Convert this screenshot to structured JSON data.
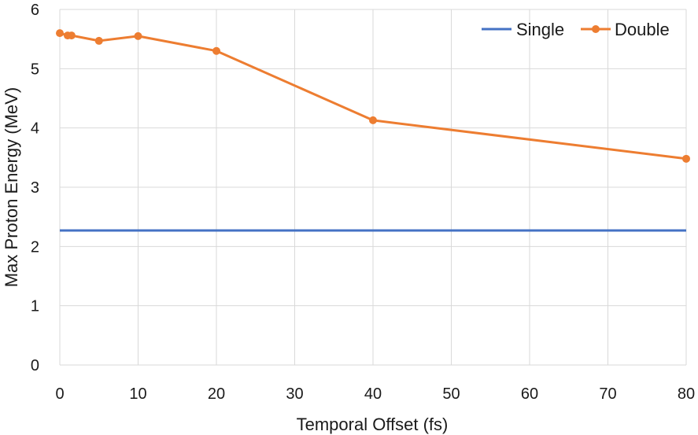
{
  "chart_data": {
    "type": "line",
    "title": "",
    "xlabel": "Temporal Offset (fs)",
    "ylabel": "Max Proton Energy (MeV)",
    "xlim": [
      0,
      80
    ],
    "ylim": [
      0,
      6
    ],
    "xticks": [
      0,
      10,
      20,
      30,
      40,
      50,
      60,
      70,
      80
    ],
    "yticks": [
      0,
      1,
      2,
      3,
      4,
      5,
      6
    ],
    "grid": true,
    "legend_position": "top-right",
    "series": [
      {
        "name": "Single",
        "color": "#4472C4",
        "markers": false,
        "x": [
          0,
          80
        ],
        "y": [
          2.27,
          2.27
        ]
      },
      {
        "name": "Double",
        "color": "#ED7D31",
        "markers": true,
        "x": [
          0,
          1,
          1.5,
          5,
          10,
          20,
          40,
          80
        ],
        "y": [
          5.6,
          5.56,
          5.56,
          5.47,
          5.55,
          5.3,
          4.13,
          3.48
        ]
      }
    ]
  }
}
